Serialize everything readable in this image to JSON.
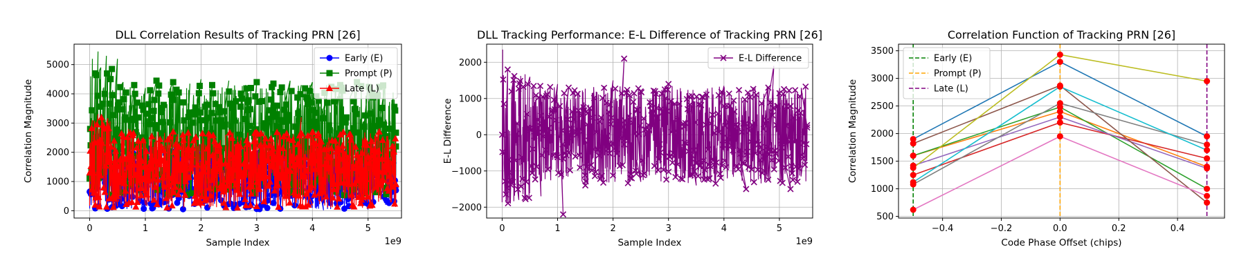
{
  "chart_data": [
    {
      "type": "line",
      "title": "DLL Correlation Results of Tracking PRN [26]",
      "xlabel": "Sample Index",
      "ylabel": "Correlation Magnitude",
      "x_offset_label": "1e9",
      "xlim": [
        -0.28,
        5.6
      ],
      "ylim": [
        -250,
        5700
      ],
      "x_ticks": [
        0,
        1,
        2,
        3,
        4,
        5
      ],
      "y_ticks": [
        0,
        1000,
        2000,
        3000,
        4000,
        5000
      ],
      "grid": true,
      "legend_position": "top-right",
      "series": [
        {
          "name": "Early (E)",
          "color": "#0000ff",
          "marker": "circle",
          "x": [
            0.0,
            0.05,
            0.1,
            0.15,
            0.2,
            0.3,
            0.4,
            0.5,
            0.7,
            1.0,
            1.3,
            1.7,
            2.0,
            2.5,
            3.0,
            3.5,
            4.0,
            4.2,
            4.5,
            5.0,
            5.3,
            5.5
          ],
          "y": [
            650,
            2400,
            80,
            2600,
            60,
            2200,
            120,
            2000,
            150,
            1900,
            100,
            2100,
            80,
            2000,
            60,
            1950,
            100,
            20,
            1900,
            40,
            2000,
            700
          ]
        },
        {
          "name": "Prompt (P)",
          "color": "#008000",
          "marker": "square",
          "x": [
            0.0,
            0.02,
            0.05,
            0.1,
            0.15,
            0.2,
            0.3,
            0.4,
            0.5,
            0.6,
            0.8,
            1.0,
            1.2,
            1.5,
            1.8,
            2.0,
            2.2,
            2.5,
            2.8,
            3.0,
            3.3,
            3.6,
            3.8,
            4.0,
            4.3,
            4.5,
            4.8,
            5.0,
            5.3,
            5.5
          ],
          "y": [
            1100,
            4600,
            5200,
            4700,
            5450,
            4900,
            5300,
            4850,
            5200,
            4400,
            4300,
            4200,
            4450,
            4400,
            4350,
            4500,
            4300,
            4450,
            4300,
            4400,
            4350,
            4450,
            4300,
            4400,
            4350,
            4300,
            4400,
            4350,
            4300,
            2200
          ]
        },
        {
          "name": "Late (L)",
          "color": "#ff0000",
          "marker": "triangle",
          "x": [
            0.0,
            0.05,
            0.1,
            0.15,
            0.2,
            0.3,
            0.5,
            0.7,
            1.0,
            1.5,
            2.0,
            2.5,
            3.0,
            3.5,
            3.8,
            4.0,
            4.5,
            4.9,
            5.2,
            5.5
          ],
          "y": [
            1300,
            3100,
            200,
            3300,
            100,
            2900,
            150,
            2800,
            200,
            2700,
            100,
            2600,
            150,
            2500,
            3200,
            200,
            2600,
            100,
            2700,
            900
          ]
        }
      ]
    },
    {
      "type": "line",
      "title": "DLL Tracking Performance: E-L Difference of Tracking PRN [26]",
      "xlabel": "Sample Index",
      "ylabel": "E-L Difference",
      "x_offset_label": "1e9",
      "xlim": [
        -0.28,
        5.6
      ],
      "ylim": [
        -2300,
        2500
      ],
      "x_ticks": [
        0,
        1,
        2,
        3,
        4,
        5
      ],
      "y_ticks": [
        -2000,
        -1000,
        0,
        1000,
        2000
      ],
      "grid": true,
      "legend_position": "top-right",
      "series": [
        {
          "name": "E-L Difference",
          "color": "#800080",
          "marker": "x",
          "x": [
            0.0,
            0.01,
            0.05,
            0.1,
            0.15,
            0.2,
            0.3,
            0.5,
            0.7,
            1.0,
            1.1,
            1.2,
            1.5,
            2.0,
            2.2,
            2.5,
            3.0,
            3.5,
            4.0,
            4.4,
            4.8,
            4.9,
            5.2,
            5.5
          ],
          "y": [
            0,
            2350,
            -1500,
            1800,
            -1900,
            1500,
            -1800,
            1600,
            -1700,
            1400,
            -2200,
            1300,
            -1400,
            1500,
            2100,
            -1300,
            1400,
            -1400,
            1350,
            -1500,
            1300,
            1900,
            -1500,
            200
          ]
        }
      ]
    },
    {
      "type": "line",
      "title": "Correlation Function of Tracking PRN [26]",
      "xlabel": "Code Phase Offset (chips)",
      "ylabel": "Correlation Magnitude",
      "xlim": [
        -0.55,
        0.56
      ],
      "ylim": [
        470,
        3620
      ],
      "x_ticks": [
        -0.4,
        -0.2,
        0.0,
        0.2,
        0.4
      ],
      "x_tick_labels": [
        "−0.4",
        "−0.2",
        "0.0",
        "0.2",
        "0.4"
      ],
      "y_ticks": [
        500,
        1000,
        1500,
        2000,
        2500,
        3000,
        3500
      ],
      "grid": true,
      "legend_position": "top-left",
      "vlines": [
        {
          "name": "Early (E)",
          "x": -0.5,
          "color": "#008000"
        },
        {
          "name": "Prompt (P)",
          "x": 0.0,
          "color": "#ffa500"
        },
        {
          "name": "Late (L)",
          "x": 0.5,
          "color": "#800080"
        }
      ],
      "x": [
        -0.5,
        0.0,
        0.5
      ],
      "series": [
        {
          "color": "#1f77b4",
          "values": [
            1900,
            3300,
            1950
          ]
        },
        {
          "color": "#ff7f0e",
          "values": [
            1600,
            2400,
            1400
          ]
        },
        {
          "color": "#2ca02c",
          "values": [
            1600,
            2480,
            1000
          ]
        },
        {
          "color": "#d62728",
          "values": [
            1250,
            2200,
            1550
          ]
        },
        {
          "color": "#9467bd",
          "values": [
            1420,
            2300,
            1370
          ]
        },
        {
          "color": "#8c564b",
          "values": [
            1820,
            2870,
            750
          ]
        },
        {
          "color": "#e377c2",
          "values": [
            620,
            1950,
            870
          ]
        },
        {
          "color": "#7f7f7f",
          "values": [
            1080,
            2550,
            1800
          ]
        },
        {
          "color": "#bcbd22",
          "values": [
            1380,
            3430,
            2950
          ]
        },
        {
          "color": "#17becf",
          "values": [
            1120,
            2850,
            1700
          ]
        }
      ]
    }
  ]
}
